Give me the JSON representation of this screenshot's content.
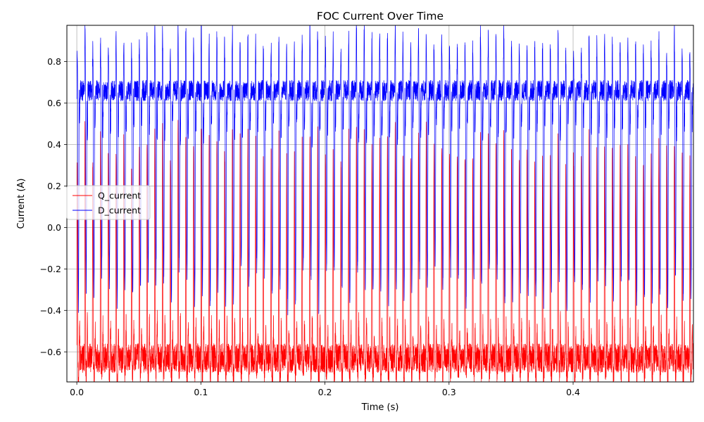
{
  "chart_data": {
    "type": "line",
    "title": "FOC Current Over Time",
    "xlabel": "Time (s)",
    "ylabel": "Current (A)",
    "xlim": [
      -0.008,
      0.497
    ],
    "ylim": [
      -0.745,
      0.975
    ],
    "grid": true,
    "legend_position": "center-left",
    "x_ticks": [
      0.0,
      0.1,
      0.2,
      0.3,
      0.4
    ],
    "x_tick_labels": [
      "0.0",
      "0.1",
      "0.2",
      "0.3",
      "0.4"
    ],
    "y_ticks": [
      -0.6,
      -0.4,
      -0.2,
      0.0,
      0.2,
      0.4,
      0.6,
      0.8
    ],
    "y_tick_labels": [
      "−0.6",
      "−0.4",
      "−0.2",
      "0.0",
      "0.2",
      "0.4",
      "0.6",
      "0.8"
    ],
    "waveform": {
      "period_s": 0.00625,
      "t_start": 0.0,
      "t_end": 0.497
    },
    "series": [
      {
        "name": "Q_current",
        "color": "#ff0000",
        "baseline": -0.63,
        "noise_range": [
          -0.745,
          -0.55
        ],
        "peak_range": [
          0.3,
          0.5
        ],
        "trough_range": [
          -0.745,
          -0.7
        ]
      },
      {
        "name": "D_current",
        "color": "#0000ff",
        "baseline": 0.66,
        "noise_range": [
          0.6,
          0.75
        ],
        "peak_range": [
          0.85,
          0.975
        ],
        "trough_range": [
          -0.38,
          -0.2
        ]
      }
    ]
  }
}
